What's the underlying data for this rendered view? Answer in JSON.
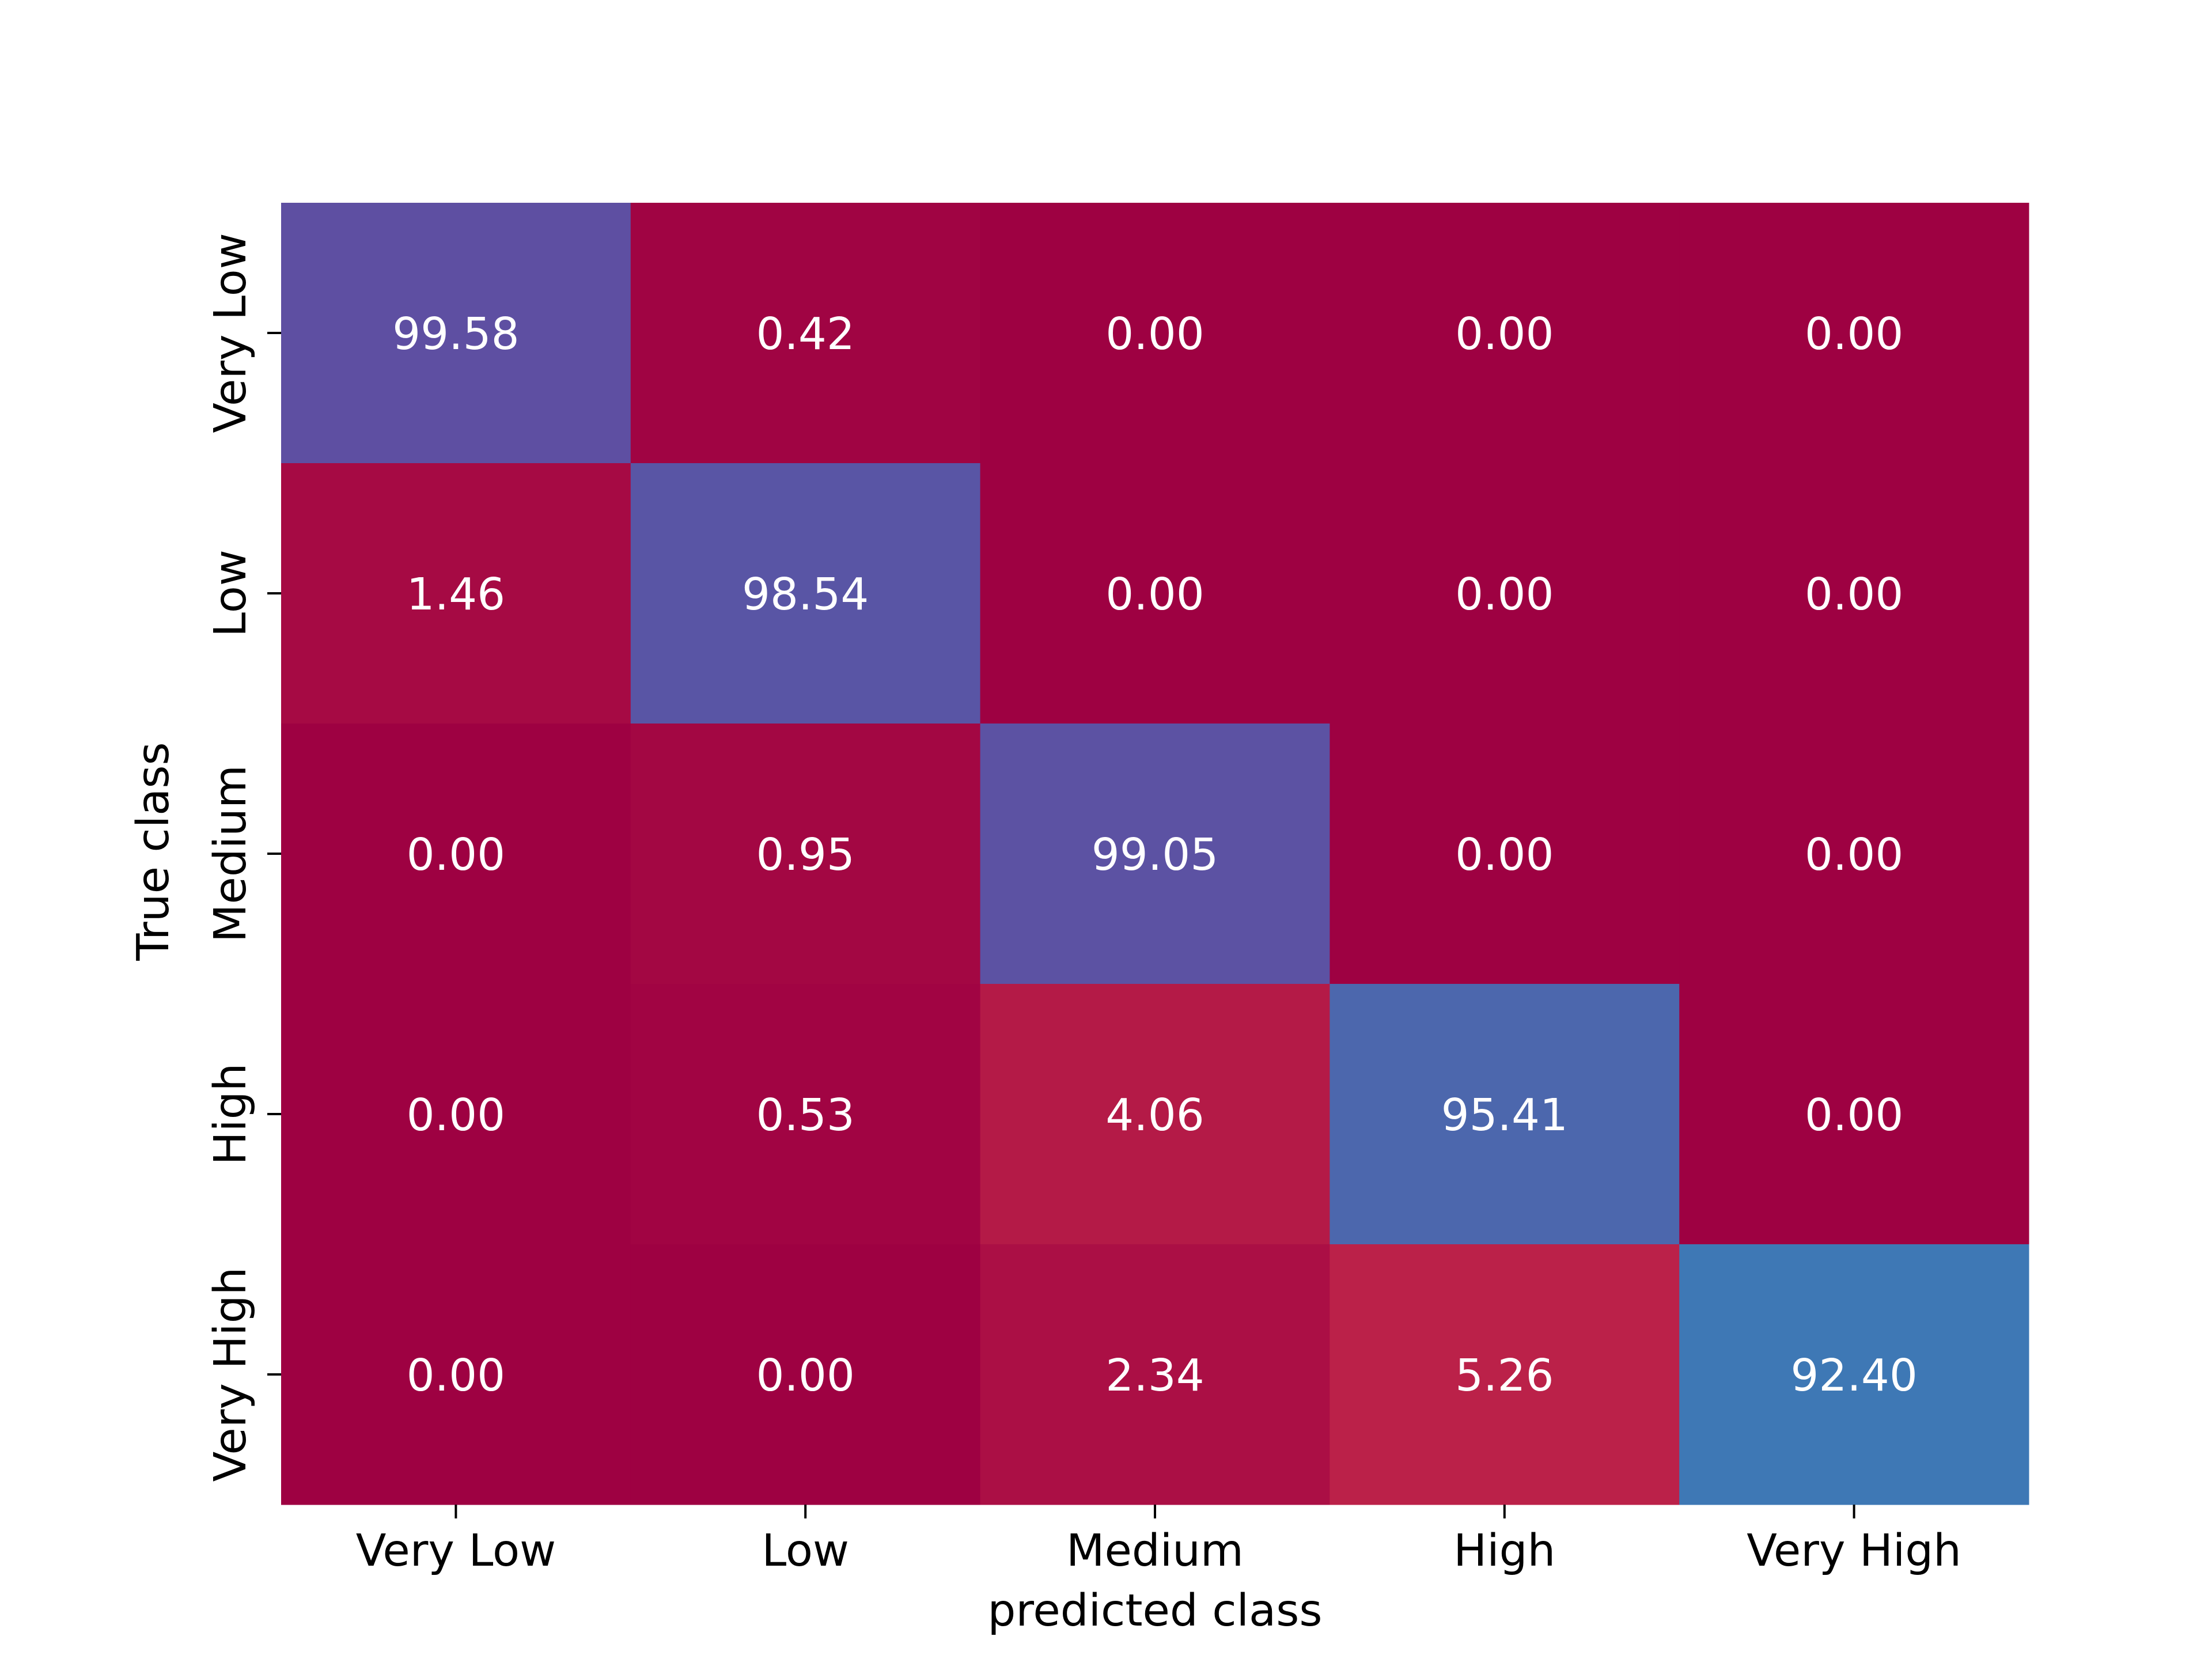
{
  "chart_data": {
    "type": "heatmap",
    "title": "",
    "xlabel": "predicted class",
    "ylabel": "True class",
    "x_categories": [
      "Very Low",
      "Low",
      "Medium",
      "High",
      "Very High"
    ],
    "y_categories": [
      "Very Low",
      "Low",
      "Medium",
      "High",
      "Very High"
    ],
    "values": [
      [
        99.58,
        0.42,
        0.0,
        0.0,
        0.0
      ],
      [
        1.46,
        98.54,
        0.0,
        0.0,
        0.0
      ],
      [
        0.0,
        0.95,
        99.05,
        0.0,
        0.0
      ],
      [
        0.0,
        0.53,
        4.06,
        95.41,
        0.0
      ],
      [
        0.0,
        0.0,
        2.34,
        5.26,
        92.4
      ]
    ],
    "value_labels": [
      [
        "99.58",
        "0.42",
        "0.00",
        "0.00",
        "0.00"
      ],
      [
        "1.46",
        "98.54",
        "0.00",
        "0.00",
        "0.00"
      ],
      [
        "0.00",
        "0.95",
        "99.05",
        "0.00",
        "0.00"
      ],
      [
        "0.00",
        "0.53",
        "4.06",
        "95.41",
        "0.00"
      ],
      [
        "0.00",
        "0.00",
        "2.34",
        "5.26",
        "92.40"
      ]
    ],
    "colormap": "Spectral",
    "colorbar": false,
    "grid": false,
    "text_color": "#ffffff",
    "axis_color": "#000000"
  }
}
